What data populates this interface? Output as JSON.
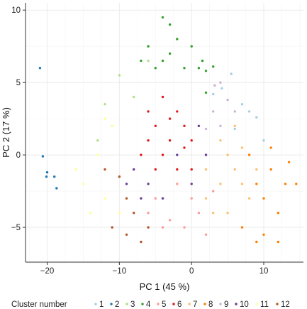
{
  "chart_data": {
    "type": "scatter",
    "title": "",
    "xlabel": "PC 1 (45 %)",
    "ylabel": "PC 2 (17 %)",
    "xlim": [
      -23,
      15.5
    ],
    "ylim": [
      -7.4,
      10.5
    ],
    "xticks": [
      -20,
      -10,
      0,
      10
    ],
    "xtick_labels": [
      "−20",
      "−10",
      "0",
      "10"
    ],
    "yticks": [
      -5,
      0,
      5,
      10
    ],
    "ytick_labels": [
      "−5",
      "0",
      "5",
      "10"
    ],
    "grid": true,
    "legend": {
      "title": "Cluster number",
      "position": "bottom",
      "entries": [
        "1",
        "2",
        "3",
        "4",
        "5",
        "6",
        "7",
        "8",
        "9",
        "10",
        "11",
        "12"
      ]
    },
    "series": [
      {
        "name": "1",
        "color": "#a6cee3",
        "points": [
          [
            3,
            4.2
          ],
          [
            5.5,
            5.6
          ],
          [
            7,
            3.5
          ],
          [
            9,
            2.6
          ],
          [
            6,
            1.8
          ],
          [
            10,
            1
          ],
          [
            4.2,
            4.6
          ],
          [
            8,
            3
          ]
        ]
      },
      {
        "name": "2",
        "color": "#1f78b4",
        "points": [
          [
            -21,
            6
          ],
          [
            -20.6,
            -0.1
          ],
          [
            -20,
            -1.2
          ],
          [
            -19,
            -1.5
          ],
          [
            -18.7,
            -2.3
          ],
          [
            -20.1,
            -1.5
          ]
        ]
      },
      {
        "name": "3",
        "color": "#b2df8a",
        "points": [
          [
            -12,
            3.5
          ],
          [
            -10,
            5.5
          ],
          [
            -8,
            4
          ],
          [
            -6,
            6.5
          ],
          [
            -13,
            1
          ],
          [
            -11,
            2
          ]
        ]
      },
      {
        "name": "4",
        "color": "#33a02c",
        "points": [
          [
            -4,
            9.5
          ],
          [
            -3,
            9
          ],
          [
            -6,
            7.5
          ],
          [
            -2,
            8
          ],
          [
            -1,
            6
          ],
          [
            1,
            6
          ],
          [
            2,
            5.8
          ],
          [
            3,
            6.1
          ],
          [
            2,
            4.3
          ],
          [
            -5,
            6
          ],
          [
            -3,
            7
          ],
          [
            0,
            7.5
          ],
          [
            -7,
            6.5
          ],
          [
            -4,
            6.5
          ],
          [
            1.5,
            6.5
          ]
        ]
      },
      {
        "name": "5",
        "color": "#fb9a99",
        "points": [
          [
            -5,
            -3
          ],
          [
            -3,
            -4.5
          ],
          [
            -1,
            -5
          ],
          [
            1,
            -4
          ],
          [
            2,
            -5.5
          ],
          [
            -2,
            -2
          ],
          [
            0,
            -3
          ],
          [
            3,
            -2.5
          ],
          [
            -4,
            -5
          ],
          [
            -6,
            -4
          ]
        ]
      },
      {
        "name": "6",
        "color": "#e31a1c",
        "points": [
          [
            -6,
            1
          ],
          [
            -5,
            2
          ],
          [
            -4,
            0
          ],
          [
            -3,
            1
          ],
          [
            -2,
            -1
          ],
          [
            -1,
            0.5
          ],
          [
            0,
            1
          ],
          [
            -5,
            -1
          ],
          [
            -3,
            2.5
          ],
          [
            -7,
            0
          ],
          [
            -2,
            3
          ],
          [
            -4,
            4
          ],
          [
            -1,
            2
          ],
          [
            -6,
            3
          ],
          [
            0,
            -1
          ]
        ]
      },
      {
        "name": "7",
        "color": "#fdbf6f",
        "points": [
          [
            2,
            -3
          ],
          [
            4,
            -2
          ],
          [
            5,
            0
          ],
          [
            6,
            -1
          ],
          [
            3,
            -4
          ],
          [
            7,
            -2
          ],
          [
            5,
            -4
          ],
          [
            8,
            -3
          ],
          [
            4,
            1
          ],
          [
            6,
            2
          ],
          [
            2,
            -1
          ],
          [
            7,
            0.5
          ],
          [
            9,
            -1
          ]
        ]
      },
      {
        "name": "8",
        "color": "#ff7f00",
        "points": [
          [
            8,
            0
          ],
          [
            9,
            -2
          ],
          [
            10,
            -3
          ],
          [
            11,
            -1
          ],
          [
            12,
            -4
          ],
          [
            13,
            -2
          ],
          [
            7,
            -5
          ],
          [
            10,
            -5.5
          ],
          [
            11,
            0.5
          ],
          [
            13.5,
            -0.5
          ],
          [
            14.5,
            -2
          ],
          [
            12,
            -6
          ],
          [
            9,
            -6
          ]
        ]
      },
      {
        "name": "9",
        "color": "#cab2d6",
        "points": [
          [
            3,
            3
          ],
          [
            4,
            2
          ],
          [
            5,
            3.8
          ],
          [
            2,
            1.8
          ],
          [
            6,
            3
          ],
          [
            4,
            5
          ],
          [
            3.2,
            4.8
          ]
        ]
      },
      {
        "name": "10",
        "color": "#6a3d9a",
        "points": [
          [
            -8,
            -1
          ],
          [
            -6,
            -2
          ],
          [
            -4,
            -3
          ],
          [
            -2,
            0
          ],
          [
            0,
            -2
          ],
          [
            1,
            2
          ],
          [
            -7,
            -3
          ],
          [
            -9,
            -2
          ],
          [
            2,
            0
          ]
        ]
      },
      {
        "name": "11",
        "color": "#ffff99",
        "points": [
          [
            -15,
            -2
          ],
          [
            -13,
            0
          ],
          [
            -12,
            -3
          ],
          [
            -11,
            2
          ],
          [
            -14,
            -4
          ],
          [
            -10,
            -4
          ],
          [
            -16,
            -1
          ],
          [
            -12,
            2.5
          ]
        ]
      },
      {
        "name": "12",
        "color": "#b15928",
        "points": [
          [
            -10,
            -1.5
          ],
          [
            -9,
            -3
          ],
          [
            -8,
            -4
          ],
          [
            -11,
            -5
          ],
          [
            -7,
            -6
          ],
          [
            -9,
            -5.5
          ],
          [
            -6,
            -5
          ],
          [
            -12,
            -1
          ]
        ]
      }
    ]
  }
}
